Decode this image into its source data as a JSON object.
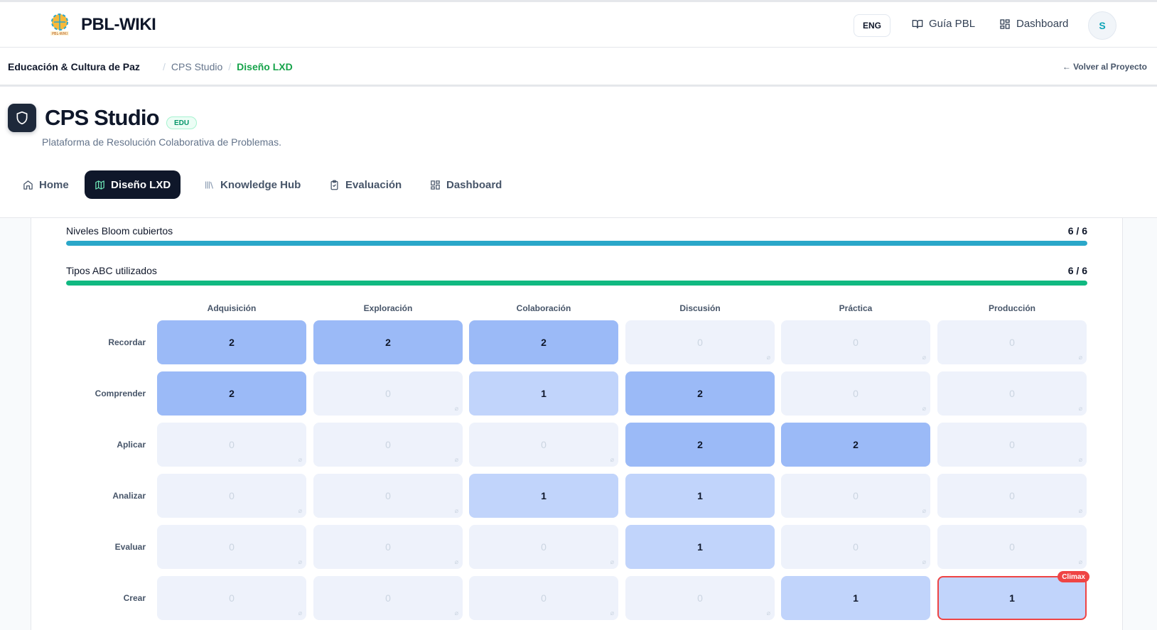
{
  "header": {
    "logo_caption": "PBL-WIKI",
    "app_name": "PBL-WIKI",
    "lang_button": "ENG",
    "links": [
      {
        "label": "Guía PBL",
        "icon": "book-open-icon"
      },
      {
        "label": "Dashboard",
        "icon": "dashboard-grid-icon"
      }
    ],
    "avatar_initial": "S"
  },
  "breadcrumb": {
    "project": "Educación & Cultura de Paz",
    "items": [
      "CPS Studio",
      "Diseño LXD"
    ],
    "back_label": "← Volver al Proyecto"
  },
  "project": {
    "icon": "shield-icon",
    "title": "CPS Studio",
    "badge": "EDU",
    "subtitle": "Plataforma de Resolución Colaborativa de Problemas."
  },
  "tabs": [
    {
      "label": "Home",
      "icon": "home-icon",
      "active": false
    },
    {
      "label": "Diseño LXD",
      "icon": "map-icon",
      "active": true
    },
    {
      "label": "Knowledge Hub",
      "icon": "library-icon",
      "active": false
    },
    {
      "label": "Evaluación",
      "icon": "clipboard-check-icon",
      "active": false
    },
    {
      "label": "Dashboard",
      "icon": "dashboard-grid-icon",
      "active": false
    }
  ],
  "metrics": [
    {
      "label": "Niveles Bloom cubiertos",
      "value": "6 / 6",
      "fraction": 1.0,
      "color": "#2aa7c9"
    },
    {
      "label": "Tipos ABC utilizados",
      "value": "6 / 6",
      "fraction": 1.0,
      "color": "#10b981"
    }
  ],
  "matrix": {
    "columns": [
      "Adquisición",
      "Exploración",
      "Colaboración",
      "Discusión",
      "Práctica",
      "Producción"
    ],
    "rows": [
      {
        "label": "Recordar",
        "values": [
          2,
          2,
          2,
          0,
          0,
          0
        ]
      },
      {
        "label": "Comprender",
        "values": [
          2,
          0,
          1,
          2,
          0,
          0
        ]
      },
      {
        "label": "Aplicar",
        "values": [
          0,
          0,
          0,
          2,
          2,
          0
        ]
      },
      {
        "label": "Analizar",
        "values": [
          0,
          0,
          1,
          1,
          0,
          0
        ]
      },
      {
        "label": "Evaluar",
        "values": [
          0,
          0,
          0,
          1,
          0,
          0
        ]
      },
      {
        "label": "Crear",
        "values": [
          0,
          0,
          0,
          0,
          1,
          1
        ]
      }
    ],
    "climax": {
      "row": 5,
      "col": 5,
      "label": "Climax"
    },
    "empty_marker": "⌀"
  }
}
